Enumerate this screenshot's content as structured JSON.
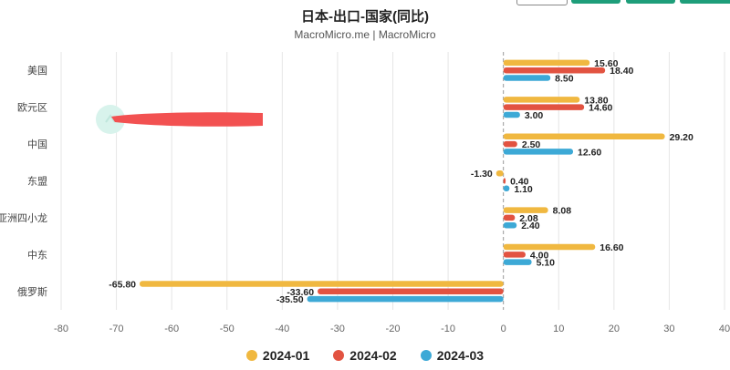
{
  "chart_data": {
    "type": "bar",
    "orientation": "horizontal",
    "title": "日本-出口-国家(同比)",
    "subtitle": "MacroMicro.me | MacroMicro",
    "categories": [
      "美国",
      "欧元区",
      "中国",
      "东盟",
      "亚洲四小龙",
      "中东",
      "俄罗斯"
    ],
    "series": [
      {
        "name": "2024-01",
        "color": "#f0b840",
        "values": [
          15.6,
          13.8,
          29.2,
          -1.3,
          8.08,
          16.6,
          -65.8
        ]
      },
      {
        "name": "2024-02",
        "color": "#e25341",
        "values": [
          18.4,
          14.6,
          2.5,
          0.4,
          2.08,
          4.0,
          -33.6
        ]
      },
      {
        "name": "2024-03",
        "color": "#3da9d6",
        "values": [
          8.5,
          3.0,
          12.6,
          1.1,
          2.4,
          5.1,
          -35.5
        ]
      }
    ],
    "xlim": [
      -80,
      40
    ],
    "xticks": [
      -80,
      -70,
      -60,
      -50,
      -40,
      -30,
      -20,
      -10,
      0,
      10,
      20,
      30,
      40
    ],
    "grid": true,
    "legend": "bottom"
  }
}
